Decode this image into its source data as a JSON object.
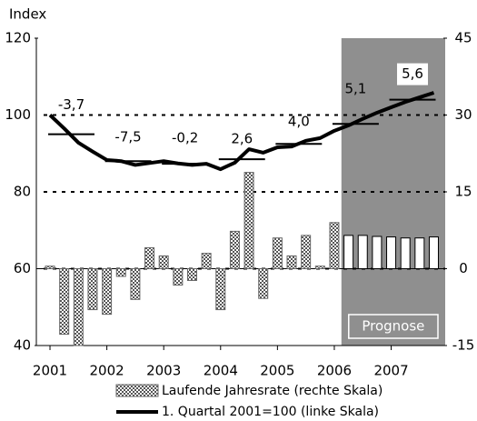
{
  "chart_data": {
    "type": "bar_line",
    "y_axis_label": "Index",
    "x": [
      2001,
      2001.25,
      2001.5,
      2001.75,
      2002,
      2002.25,
      2002.5,
      2002.75,
      2003,
      2003.25,
      2003.5,
      2003.75,
      2004,
      2004.25,
      2004.5,
      2004.75,
      2005,
      2005.25,
      2005.5,
      2005.75,
      2006,
      2006.25,
      2006.5,
      2006.75,
      2007,
      2007.25,
      2007.5,
      2007.75
    ],
    "xlim": [
      2000.76,
      2007.95
    ],
    "xticks": [
      2001,
      2002,
      2003,
      2004,
      2005,
      2006,
      2007
    ],
    "ylim": [
      40,
      120
    ],
    "yticks": [
      40,
      60,
      80,
      100,
      120
    ],
    "y2lim": [
      -15,
      45
    ],
    "y2ticks": [
      -15,
      0,
      15,
      30,
      45
    ],
    "grid": true,
    "forecast_label": "Prognose",
    "forecast_start": 2006.25,
    "series": [
      {
        "name": "Laufende Jahresrate (rechte Skala)",
        "type": "bar",
        "axis": "y2",
        "color": "#888888",
        "values": [
          0.5,
          -12.8,
          -15,
          -8,
          -8.9,
          -1.5,
          -6,
          4.1,
          2.5,
          -3.2,
          -2.3,
          3,
          -8,
          7.3,
          18.8,
          -5.8,
          6,
          2.5,
          6.5,
          0.5,
          9,
          6.5,
          6.5,
          6.3,
          6.2,
          6,
          6,
          6.2
        ]
      },
      {
        "name": "1. Quartal 2001=100 (linke Skala)",
        "type": "line",
        "axis": "y",
        "color": "#000000",
        "values": [
          100,
          96.5,
          92.8,
          90.5,
          88.3,
          88,
          87,
          87.5,
          88,
          87.4,
          87,
          87.3,
          85.9,
          87.6,
          91.1,
          90.2,
          91.6,
          91.8,
          93.3,
          94,
          95.9,
          97.3,
          99,
          100.6,
          102,
          103.4,
          104.6,
          105.8
        ]
      }
    ],
    "annual_rates": {
      "years": [
        2001,
        2002,
        2003,
        2004,
        2005,
        2006,
        2007
      ],
      "values": [
        -3.7,
        -7.5,
        -0.2,
        2.6,
        4.0,
        5.1,
        5.6
      ],
      "value_labels": [
        "-3,7",
        "-7,5",
        "-0,2",
        "2,6",
        "4,0",
        "5,1",
        "5,6"
      ],
      "levels": [
        95,
        88,
        87.3,
        88.5,
        92.5,
        97.7,
        104
      ]
    }
  }
}
